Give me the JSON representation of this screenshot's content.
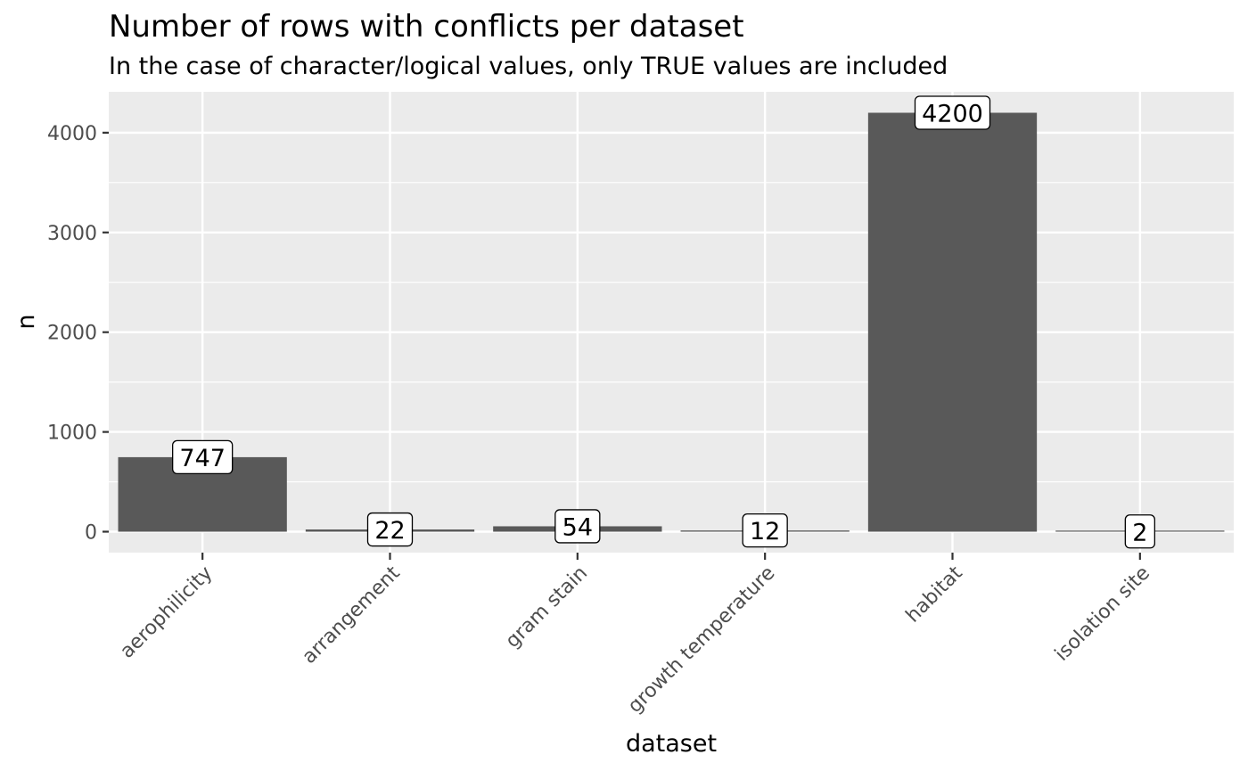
{
  "chart_data": {
    "type": "bar",
    "title": "Number of rows with conflicts per dataset",
    "subtitle": "In the case of character/logical values, only TRUE values are included",
    "xlabel": "dataset",
    "ylabel": "n",
    "categories": [
      "aerophilicity",
      "arrangement",
      "gram stain",
      "growth temperature",
      "habitat",
      "isolation site"
    ],
    "values": [
      747,
      22,
      54,
      12,
      4200,
      2
    ],
    "data_labels": [
      "747",
      "22",
      "54",
      "12",
      "4200",
      "2"
    ],
    "y_ticks": [
      0,
      1000,
      2000,
      3000,
      4000
    ],
    "y_tick_labels": [
      "0",
      "1000",
      "2000",
      "3000",
      "4000"
    ],
    "ylim": [
      -210,
      4410
    ],
    "grid": true,
    "legend": "none",
    "colors": {
      "bar": "#595959",
      "panel": "#ebebeb",
      "grid": "#ffffff",
      "label_fill": "#ffffff",
      "label_border": "#000000",
      "tick": "#333333"
    }
  }
}
